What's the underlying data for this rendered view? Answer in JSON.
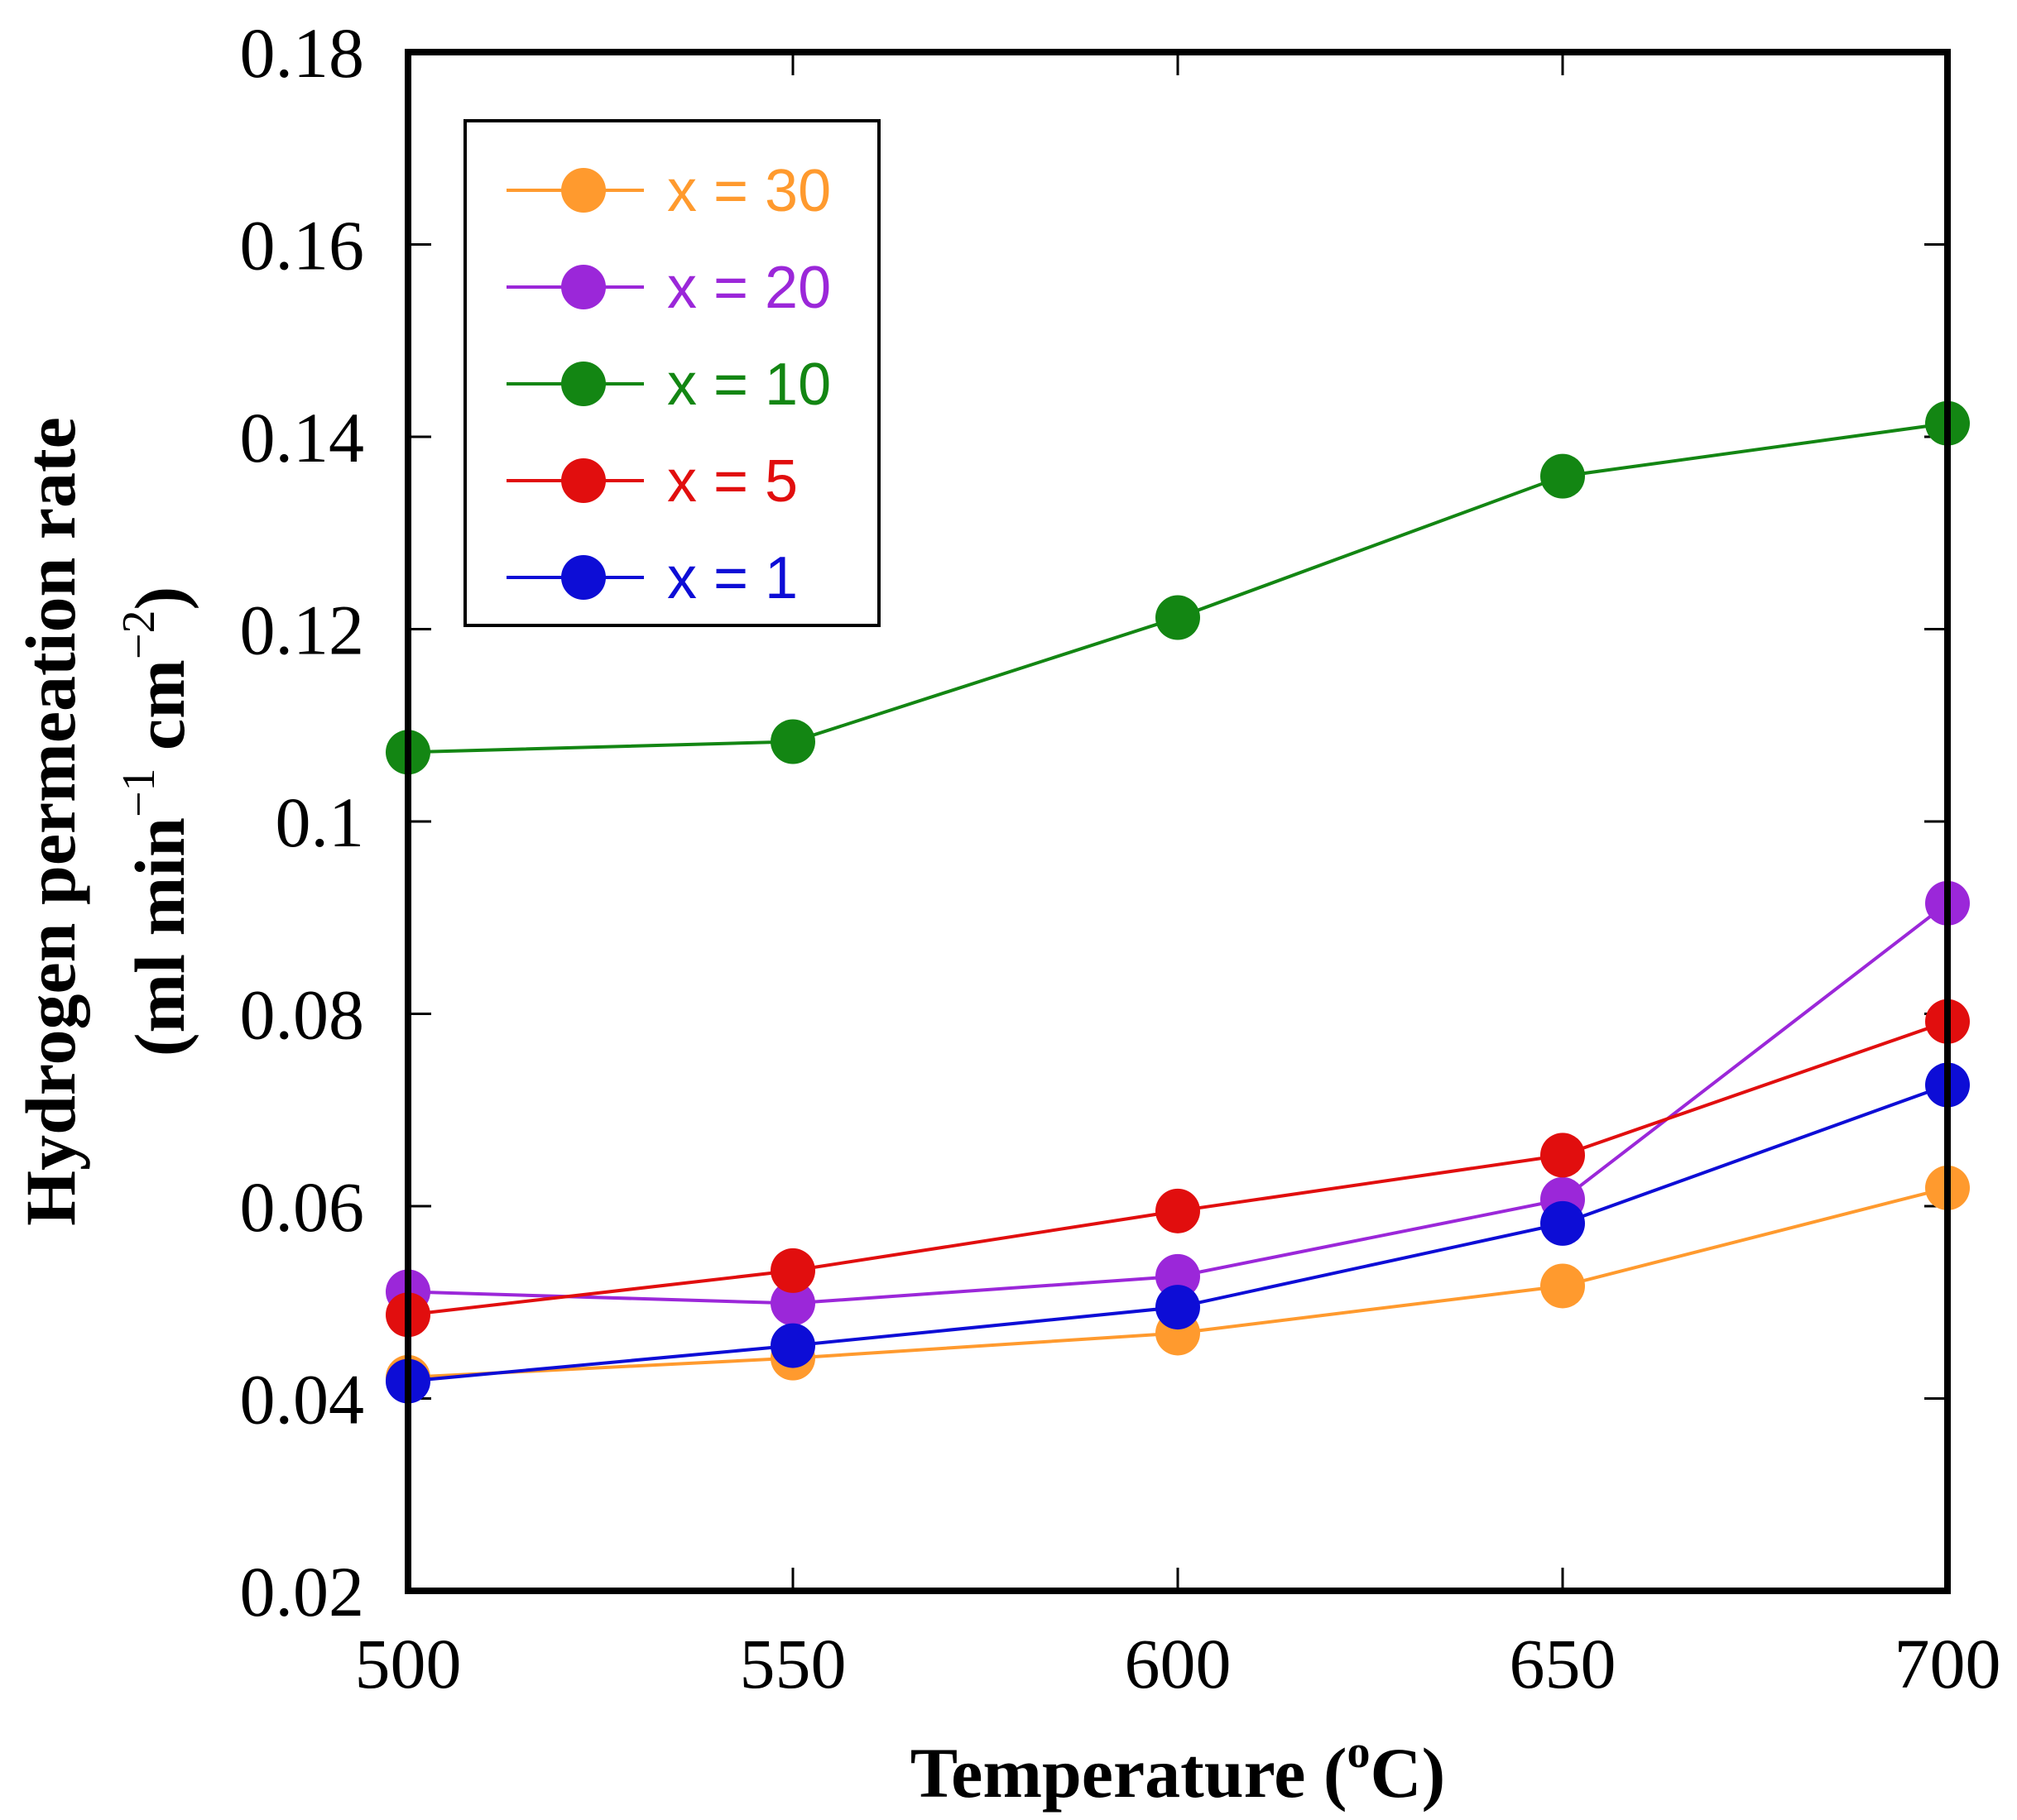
{
  "chart_data": {
    "type": "line",
    "x": [
      500,
      550,
      600,
      650,
      700
    ],
    "xlim": [
      500,
      700
    ],
    "ylim": [
      0.02,
      0.18
    ],
    "xticks": [
      "500",
      "550",
      "600",
      "650",
      "700"
    ],
    "yticks": [
      "0.02",
      "0.04",
      "0.06",
      "0.08",
      "0.1",
      "0.12",
      "0.14",
      "0.16",
      "0.18"
    ],
    "xlabel": {
      "text": "Temperature (",
      "sup": "o",
      "suffix": "C)"
    },
    "ylabel": {
      "line1": "Hydrogen permeation rate",
      "line2_a": "(ml min",
      "line2_sup1": "−1",
      "line2_b": " cm",
      "line2_sup2": "−2",
      "line2_c": ")"
    },
    "grid": false,
    "legend_position": "top-left",
    "series": [
      {
        "name": "x = 30",
        "color": "#FF9A2E",
        "values": [
          0.0422,
          0.0442,
          0.0468,
          0.0517,
          0.0619
        ]
      },
      {
        "name": "x = 20",
        "color": "#9B27D9",
        "values": [
          0.0511,
          0.0499,
          0.0527,
          0.0607,
          0.0915
        ]
      },
      {
        "name": "x = 10",
        "color": "#138613",
        "values": [
          0.1072,
          0.1083,
          0.1212,
          0.1359,
          0.1414
        ]
      },
      {
        "name": "x = 5",
        "color": "#E10E0E",
        "values": [
          0.0487,
          0.0533,
          0.0595,
          0.0653,
          0.0792
        ]
      },
      {
        "name": "x = 1",
        "color": "#0D0DD6",
        "values": [
          0.0418,
          0.0455,
          0.0495,
          0.0582,
          0.0726
        ]
      }
    ]
  }
}
